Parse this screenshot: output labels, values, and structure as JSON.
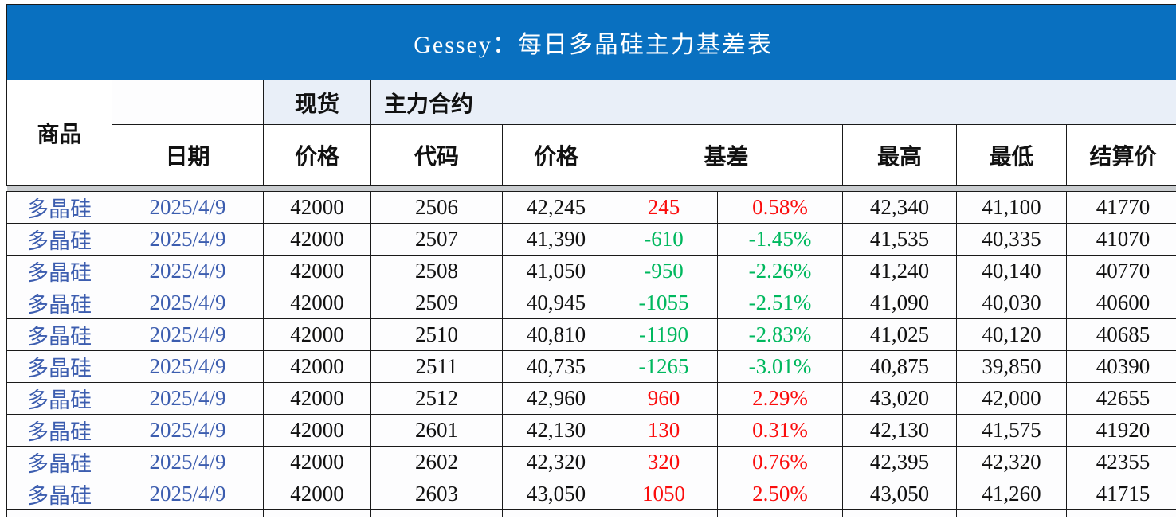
{
  "title": "Gessey：每日多晶硅主力基差表",
  "table": {
    "group_headers": {
      "spot": "现货",
      "main_contract": "主力合约"
    },
    "columns": {
      "commodity": "商品",
      "date": "日期",
      "spot_price": "价格",
      "code": "代码",
      "price": "价格",
      "basis": "基差",
      "high": "最高",
      "low": "最低",
      "settlement": "结算价"
    },
    "rows": [
      {
        "commodity": "多晶硅",
        "date": "2025/4/9",
        "spot_price": "42000",
        "code": "2506",
        "price": "42,245",
        "basis": "245",
        "basis_pct": "0.58%",
        "trend": "up",
        "high": "42,340",
        "low": "41,100",
        "settlement": "41770"
      },
      {
        "commodity": "多晶硅",
        "date": "2025/4/9",
        "spot_price": "42000",
        "code": "2507",
        "price": "41,390",
        "basis": "-610",
        "basis_pct": "-1.45%",
        "trend": "down",
        "high": "41,535",
        "low": "40,335",
        "settlement": "41070"
      },
      {
        "commodity": "多晶硅",
        "date": "2025/4/9",
        "spot_price": "42000",
        "code": "2508",
        "price": "41,050",
        "basis": "-950",
        "basis_pct": "-2.26%",
        "trend": "down",
        "high": "41,240",
        "low": "40,140",
        "settlement": "40770"
      },
      {
        "commodity": "多晶硅",
        "date": "2025/4/9",
        "spot_price": "42000",
        "code": "2509",
        "price": "40,945",
        "basis": "-1055",
        "basis_pct": "-2.51%",
        "trend": "down",
        "high": "41,090",
        "low": "40,030",
        "settlement": "40600"
      },
      {
        "commodity": "多晶硅",
        "date": "2025/4/9",
        "spot_price": "42000",
        "code": "2510",
        "price": "40,810",
        "basis": "-1190",
        "basis_pct": "-2.83%",
        "trend": "down",
        "high": "41,025",
        "low": "40,120",
        "settlement": "40685"
      },
      {
        "commodity": "多晶硅",
        "date": "2025/4/9",
        "spot_price": "42000",
        "code": "2511",
        "price": "40,735",
        "basis": "-1265",
        "basis_pct": "-3.01%",
        "trend": "down",
        "high": "40,875",
        "low": "39,850",
        "settlement": "40390"
      },
      {
        "commodity": "多晶硅",
        "date": "2025/4/9",
        "spot_price": "42000",
        "code": "2512",
        "price": "42,960",
        "basis": "960",
        "basis_pct": "2.29%",
        "trend": "up",
        "high": "43,020",
        "low": "42,000",
        "settlement": "42655"
      },
      {
        "commodity": "多晶硅",
        "date": "2025/4/9",
        "spot_price": "42000",
        "code": "2601",
        "price": "42,130",
        "basis": "130",
        "basis_pct": "0.31%",
        "trend": "up",
        "high": "42,130",
        "low": "41,575",
        "settlement": "41920"
      },
      {
        "commodity": "多晶硅",
        "date": "2025/4/9",
        "spot_price": "42000",
        "code": "2602",
        "price": "42,320",
        "basis": "320",
        "basis_pct": "0.76%",
        "trend": "up",
        "high": "42,395",
        "low": "42,320",
        "settlement": "42355"
      },
      {
        "commodity": "多晶硅",
        "date": "2025/4/9",
        "spot_price": "42000",
        "code": "2603",
        "price": "43,050",
        "basis": "1050",
        "basis_pct": "2.50%",
        "trend": "up",
        "high": "43,050",
        "low": "41,260",
        "settlement": "41715"
      }
    ]
  },
  "colors": {
    "title_bar": "#0970C0",
    "group_header_bg": "#E9EFF8",
    "link_blue": "#3C5DAF",
    "positive_red": "#FB0D0D",
    "negative_green": "#00B85E",
    "border": "#1A1A1A",
    "separator": "#C9CCCF",
    "row_bg": "#FDFDFE"
  }
}
